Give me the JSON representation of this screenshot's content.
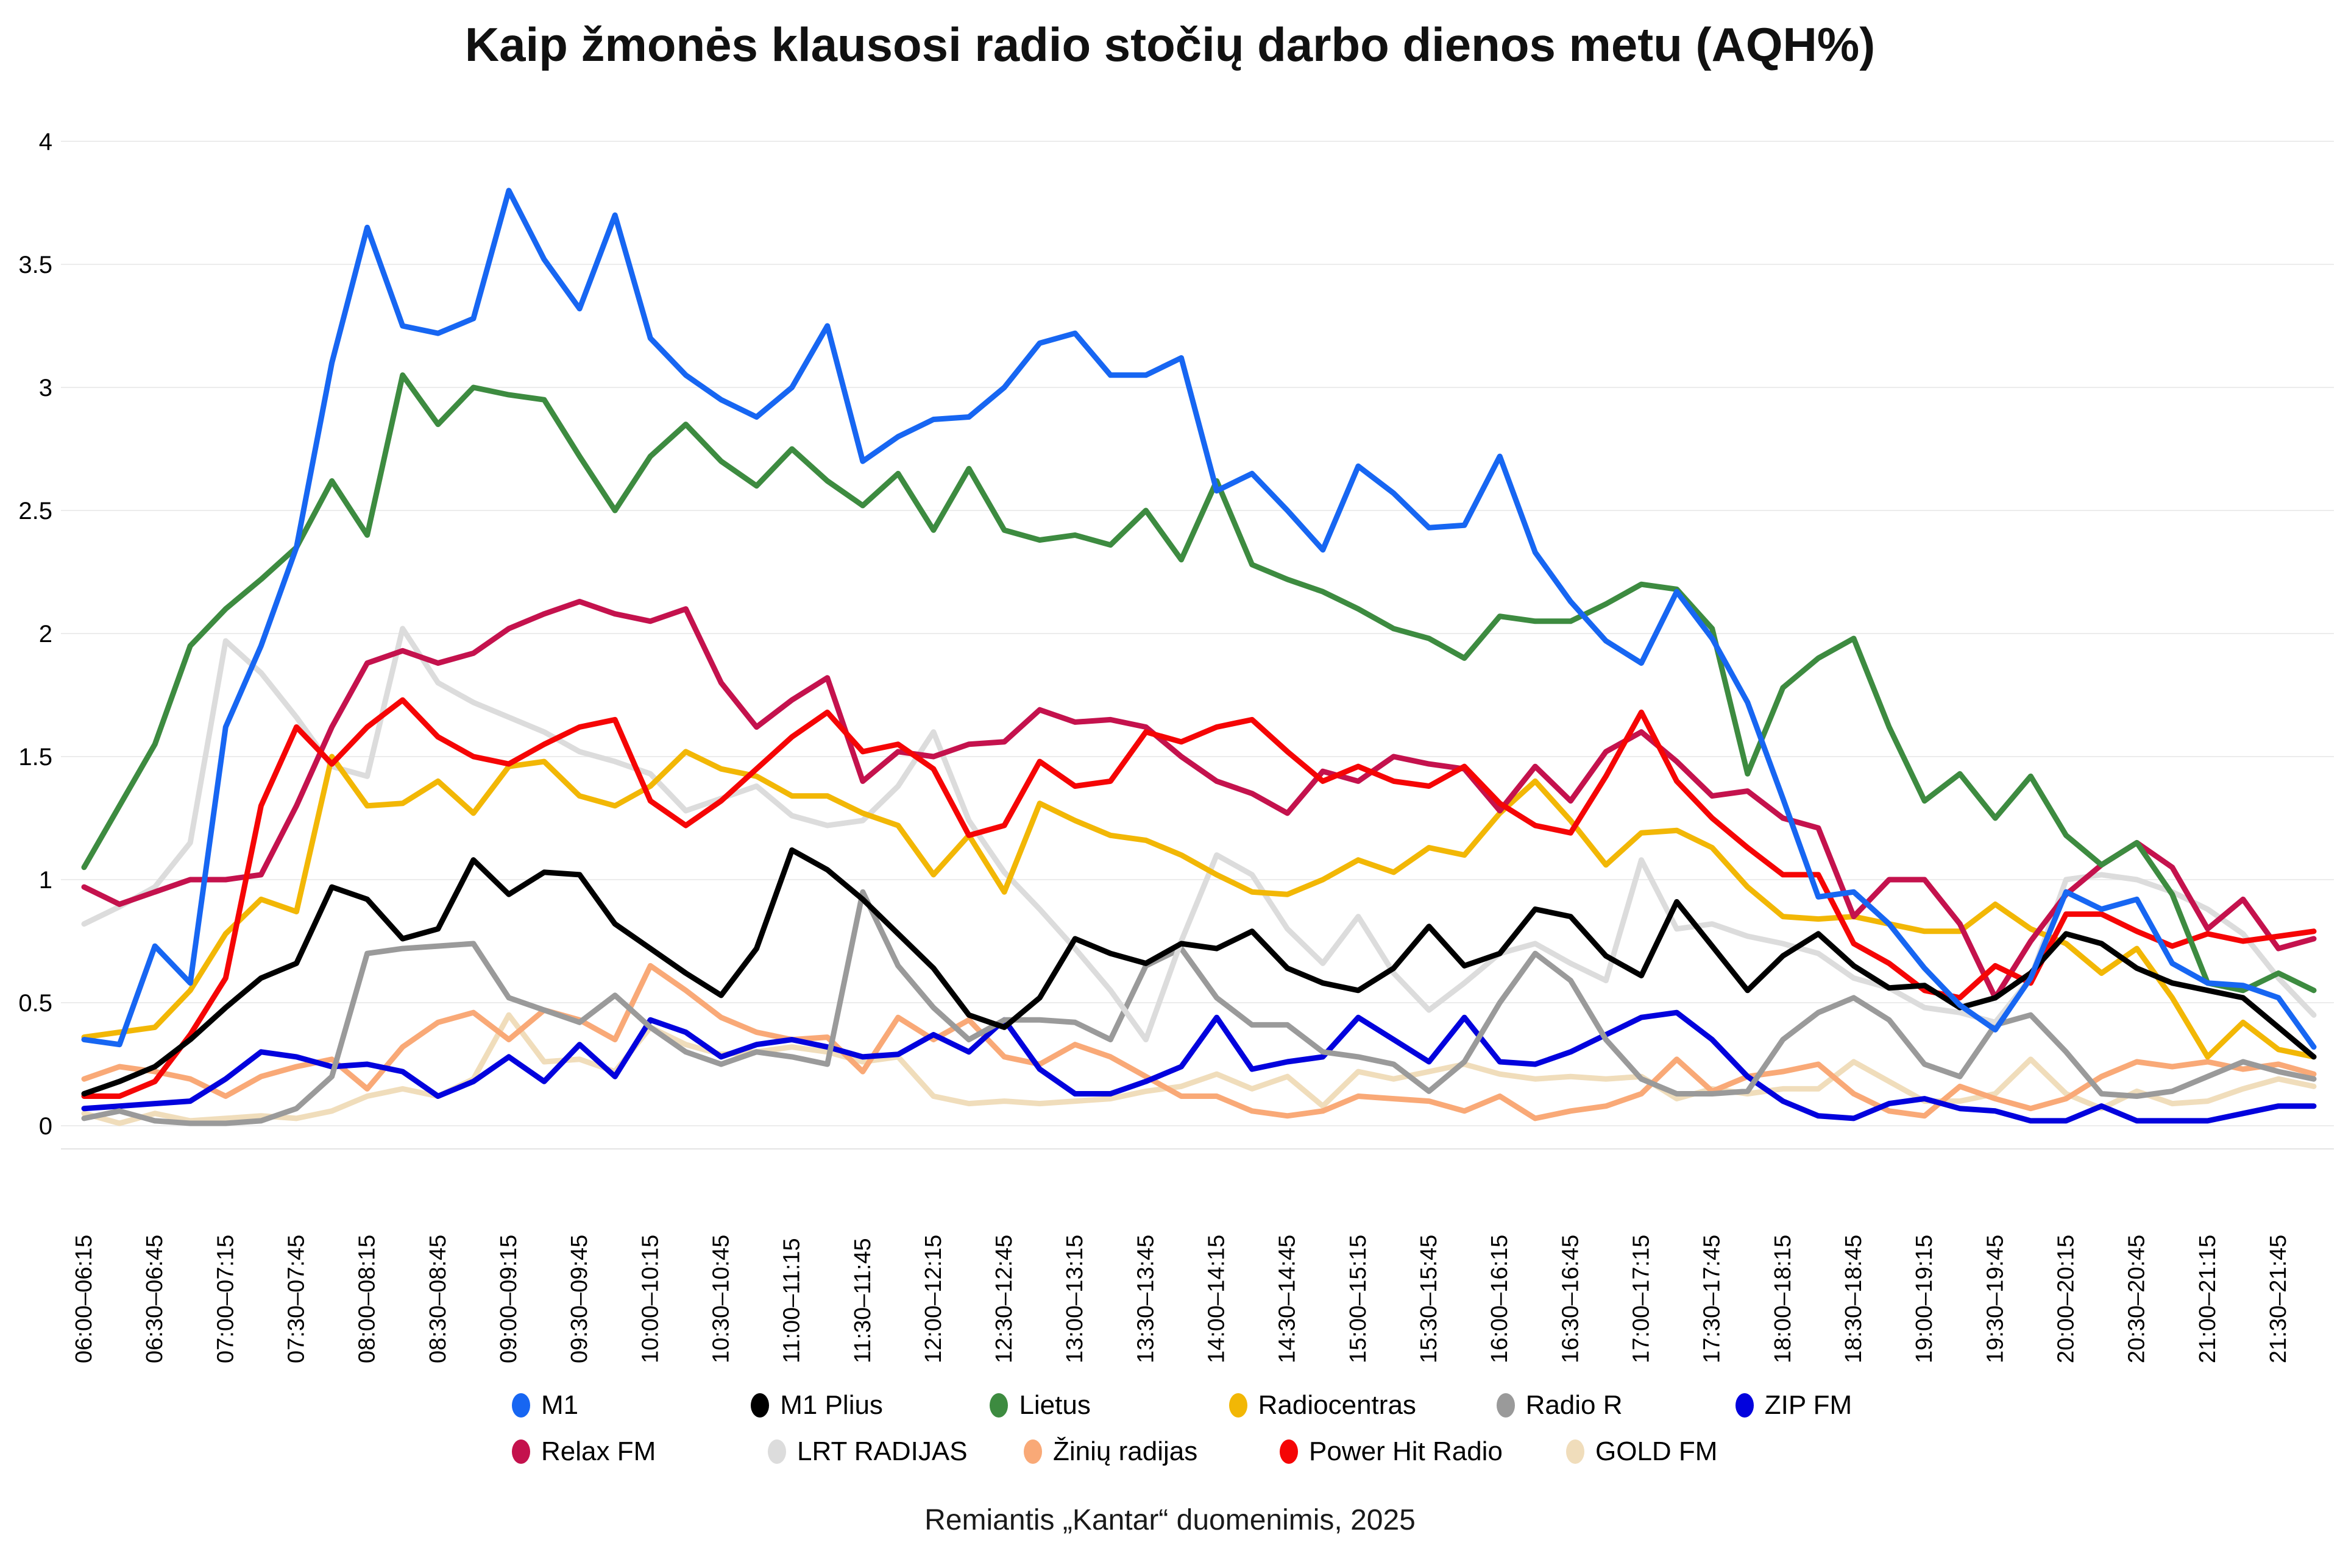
{
  "title": "Kaip žmonės klausosi radio stočių darbo dienos metu (AQH%)",
  "footer": "Remiantis „Kantar“ duomenimis, 2025",
  "chart_data": {
    "type": "line",
    "ylabel": "",
    "xlabel": "",
    "ylim": [
      0,
      4
    ],
    "yticks": [
      0,
      0.5,
      1,
      1.5,
      2,
      2.5,
      3,
      3.5,
      4
    ],
    "grid": "horizontal",
    "legend_position": "bottom",
    "x_tick_labels": [
      "06:00–06:15",
      "06:30–06:45",
      "07:00–07:15",
      "07:30–07:45",
      "08:00–08:15",
      "08:30–08:45",
      "09:00–09:15",
      "09:30–09:45",
      "10:00–10:15",
      "10:30–10:45",
      "11:00–11:15",
      "11:30–11:45",
      "12:00–12:15",
      "12:30–12:45",
      "13:00–13:15",
      "13:30–13:45",
      "14:00–14:15",
      "14:30–14:45",
      "15:00–15:15",
      "15:30–15:45",
      "16:00–16:15",
      "16:30–16:45",
      "17:00–17:15",
      "17:30–17:45",
      "18:00–18:15",
      "18:30–18:45",
      "19:00–19:15",
      "19:30–19:45",
      "20:00–20:15",
      "20:30–20:45",
      "21:00–21:15",
      "21:30–21:45"
    ],
    "x_points_per_label": 2,
    "series": [
      {
        "name": "M1",
        "color": "#1766f2",
        "values": [
          0.35,
          0.33,
          0.73,
          0.58,
          1.62,
          1.95,
          2.35,
          3.1,
          3.65,
          3.25,
          3.22,
          3.28,
          3.8,
          3.52,
          3.32,
          3.7,
          3.2,
          3.05,
          2.95,
          2.88,
          3.0,
          3.25,
          2.7,
          2.8,
          2.87,
          2.88,
          3.0,
          3.18,
          3.22,
          3.05,
          3.05,
          3.12,
          2.58,
          2.65,
          2.5,
          2.34,
          2.68,
          2.57,
          2.43,
          2.44,
          2.72,
          2.33,
          2.13,
          1.97,
          1.88,
          2.17,
          1.98,
          1.72,
          1.33,
          0.93,
          0.95,
          0.82,
          0.64,
          0.49,
          0.39,
          0.6,
          0.95,
          0.88,
          0.92,
          0.66,
          0.58,
          0.57,
          0.52,
          0.32
        ]
      },
      {
        "name": "M1 Plius",
        "color": "#000000",
        "values": [
          0.13,
          0.18,
          0.24,
          0.35,
          0.48,
          0.6,
          0.66,
          0.97,
          0.92,
          0.76,
          0.8,
          1.08,
          0.94,
          1.03,
          1.02,
          0.82,
          0.72,
          0.62,
          0.53,
          0.72,
          1.12,
          1.04,
          0.92,
          0.78,
          0.64,
          0.45,
          0.4,
          0.52,
          0.76,
          0.7,
          0.66,
          0.74,
          0.72,
          0.79,
          0.64,
          0.58,
          0.55,
          0.64,
          0.81,
          0.65,
          0.7,
          0.88,
          0.85,
          0.69,
          0.61,
          0.91,
          0.73,
          0.55,
          0.69,
          0.78,
          0.65,
          0.56,
          0.57,
          0.48,
          0.52,
          0.62,
          0.78,
          0.74,
          0.64,
          0.58,
          0.55,
          0.52,
          0.4,
          0.28
        ]
      },
      {
        "name": "Lietus",
        "color": "#3d8b40",
        "values": [
          1.05,
          1.3,
          1.55,
          1.95,
          2.1,
          2.22,
          2.35,
          2.62,
          2.4,
          3.05,
          2.85,
          3.0,
          2.97,
          2.95,
          2.72,
          2.5,
          2.72,
          2.85,
          2.7,
          2.6,
          2.75,
          2.62,
          2.52,
          2.65,
          2.42,
          2.67,
          2.42,
          2.38,
          2.4,
          2.36,
          2.5,
          2.3,
          2.62,
          2.28,
          2.22,
          2.17,
          2.1,
          2.02,
          1.98,
          1.9,
          2.07,
          2.05,
          2.05,
          2.12,
          2.2,
          2.18,
          2.02,
          1.43,
          1.78,
          1.9,
          1.98,
          1.62,
          1.32,
          1.43,
          1.25,
          1.42,
          1.18,
          1.06,
          1.15,
          0.94,
          0.58,
          0.55,
          0.62,
          0.55
        ]
      },
      {
        "name": "Radiocentras",
        "color": "#f2b705",
        "values": [
          0.36,
          0.38,
          0.4,
          0.55,
          0.78,
          0.92,
          0.87,
          1.5,
          1.3,
          1.31,
          1.4,
          1.27,
          1.46,
          1.48,
          1.34,
          1.3,
          1.38,
          1.52,
          1.45,
          1.42,
          1.34,
          1.34,
          1.27,
          1.22,
          1.02,
          1.18,
          0.95,
          1.31,
          1.24,
          1.18,
          1.16,
          1.1,
          1.02,
          0.95,
          0.94,
          1.0,
          1.08,
          1.03,
          1.13,
          1.1,
          1.27,
          1.4,
          1.24,
          1.06,
          1.19,
          1.2,
          1.13,
          0.97,
          0.85,
          0.84,
          0.85,
          0.82,
          0.79,
          0.79,
          0.9,
          0.8,
          0.74,
          0.62,
          0.72,
          0.52,
          0.28,
          0.42,
          0.31,
          0.28
        ]
      },
      {
        "name": "Radio R",
        "color": "#9a9a9a",
        "values": [
          0.03,
          0.06,
          0.02,
          0.01,
          0.01,
          0.02,
          0.07,
          0.2,
          0.7,
          0.72,
          0.73,
          0.74,
          0.52,
          0.47,
          0.42,
          0.53,
          0.4,
          0.3,
          0.25,
          0.3,
          0.28,
          0.25,
          0.95,
          0.65,
          0.48,
          0.35,
          0.43,
          0.43,
          0.42,
          0.35,
          0.65,
          0.72,
          0.52,
          0.41,
          0.41,
          0.3,
          0.28,
          0.25,
          0.14,
          0.26,
          0.5,
          0.7,
          0.59,
          0.35,
          0.19,
          0.13,
          0.13,
          0.14,
          0.35,
          0.46,
          0.52,
          0.43,
          0.25,
          0.2,
          0.41,
          0.45,
          0.3,
          0.13,
          0.12,
          0.14,
          0.2,
          0.26,
          0.22,
          0.19
        ]
      },
      {
        "name": "ZIP FM",
        "color": "#0202dd",
        "values": [
          0.07,
          0.08,
          0.09,
          0.1,
          0.19,
          0.3,
          0.28,
          0.24,
          0.25,
          0.22,
          0.12,
          0.18,
          0.28,
          0.18,
          0.33,
          0.2,
          0.43,
          0.38,
          0.28,
          0.33,
          0.35,
          0.32,
          0.28,
          0.29,
          0.37,
          0.3,
          0.43,
          0.23,
          0.13,
          0.13,
          0.18,
          0.24,
          0.44,
          0.23,
          0.26,
          0.28,
          0.44,
          0.35,
          0.26,
          0.44,
          0.26,
          0.25,
          0.3,
          0.37,
          0.44,
          0.46,
          0.35,
          0.2,
          0.1,
          0.04,
          0.03,
          0.09,
          0.11,
          0.07,
          0.06,
          0.02,
          0.02,
          0.08,
          0.02,
          0.02,
          0.02,
          0.05,
          0.08,
          0.08
        ]
      },
      {
        "name": "Relax FM",
        "color": "#c4124d",
        "values": [
          0.97,
          0.9,
          0.95,
          1.0,
          1.0,
          1.02,
          1.3,
          1.62,
          1.88,
          1.93,
          1.88,
          1.92,
          2.02,
          2.08,
          2.13,
          2.08,
          2.05,
          2.1,
          1.8,
          1.62,
          1.73,
          1.82,
          1.4,
          1.52,
          1.5,
          1.55,
          1.56,
          1.69,
          1.64,
          1.65,
          1.62,
          1.5,
          1.4,
          1.35,
          1.27,
          1.44,
          1.4,
          1.5,
          1.47,
          1.45,
          1.28,
          1.46,
          1.32,
          1.52,
          1.6,
          1.48,
          1.34,
          1.36,
          1.25,
          1.21,
          0.85,
          1.0,
          1.0,
          0.82,
          0.52,
          0.75,
          0.94,
          1.06,
          1.15,
          1.05,
          0.8,
          0.92,
          0.72,
          0.76
        ]
      },
      {
        "name": "LRT RADIJAS",
        "color": "#dcdcdc",
        "values": [
          0.82,
          0.89,
          0.97,
          1.15,
          1.97,
          1.84,
          1.66,
          1.46,
          1.42,
          2.02,
          1.8,
          1.72,
          1.66,
          1.6,
          1.52,
          1.48,
          1.43,
          1.28,
          1.33,
          1.38,
          1.26,
          1.22,
          1.24,
          1.38,
          1.6,
          1.24,
          1.03,
          0.88,
          0.72,
          0.55,
          0.35,
          0.75,
          1.1,
          1.02,
          0.8,
          0.66,
          0.85,
          0.62,
          0.47,
          0.58,
          0.7,
          0.74,
          0.66,
          0.59,
          1.08,
          0.8,
          0.82,
          0.77,
          0.74,
          0.7,
          0.6,
          0.56,
          0.48,
          0.46,
          0.42,
          0.6,
          1.0,
          1.02,
          1.0,
          0.95,
          0.88,
          0.78,
          0.6,
          0.45
        ]
      },
      {
        "name": "Žinių radijas",
        "color": "#f9a977",
        "values": [
          0.19,
          0.24,
          0.22,
          0.19,
          0.12,
          0.2,
          0.24,
          0.27,
          0.15,
          0.32,
          0.42,
          0.46,
          0.35,
          0.47,
          0.43,
          0.35,
          0.65,
          0.55,
          0.44,
          0.38,
          0.35,
          0.36,
          0.22,
          0.44,
          0.35,
          0.43,
          0.28,
          0.25,
          0.33,
          0.28,
          0.2,
          0.12,
          0.12,
          0.06,
          0.04,
          0.06,
          0.12,
          0.11,
          0.1,
          0.06,
          0.12,
          0.03,
          0.06,
          0.08,
          0.13,
          0.27,
          0.14,
          0.2,
          0.22,
          0.25,
          0.13,
          0.06,
          0.04,
          0.16,
          0.11,
          0.07,
          0.11,
          0.2,
          0.26,
          0.24,
          0.26,
          0.23,
          0.25,
          0.21
        ]
      },
      {
        "name": "Power Hit Radio",
        "color": "#f50505",
        "values": [
          0.12,
          0.12,
          0.18,
          0.37,
          0.6,
          1.3,
          1.62,
          1.47,
          1.62,
          1.73,
          1.58,
          1.5,
          1.47,
          1.55,
          1.62,
          1.65,
          1.32,
          1.22,
          1.32,
          1.45,
          1.58,
          1.68,
          1.52,
          1.55,
          1.45,
          1.18,
          1.22,
          1.48,
          1.38,
          1.4,
          1.6,
          1.56,
          1.62,
          1.65,
          1.52,
          1.4,
          1.46,
          1.4,
          1.38,
          1.46,
          1.31,
          1.22,
          1.19,
          1.42,
          1.68,
          1.4,
          1.25,
          1.13,
          1.02,
          1.02,
          0.74,
          0.66,
          0.55,
          0.52,
          0.65,
          0.58,
          0.86,
          0.86,
          0.79,
          0.73,
          0.78,
          0.75,
          0.77,
          0.79
        ]
      },
      {
        "name": "GOLD FM",
        "color": "#f0ddbb",
        "values": [
          0.05,
          0.01,
          0.05,
          0.02,
          0.03,
          0.04,
          0.03,
          0.06,
          0.12,
          0.15,
          0.12,
          0.19,
          0.45,
          0.26,
          0.27,
          0.22,
          0.4,
          0.33,
          0.29,
          0.3,
          0.32,
          0.3,
          0.26,
          0.28,
          0.12,
          0.09,
          0.1,
          0.09,
          0.1,
          0.11,
          0.14,
          0.16,
          0.21,
          0.15,
          0.2,
          0.08,
          0.22,
          0.19,
          0.22,
          0.25,
          0.21,
          0.19,
          0.2,
          0.19,
          0.2,
          0.11,
          0.15,
          0.13,
          0.15,
          0.15,
          0.26,
          0.18,
          0.1,
          0.1,
          0.13,
          0.27,
          0.13,
          0.07,
          0.14,
          0.09,
          0.1,
          0.15,
          0.19,
          0.16
        ]
      }
    ],
    "draw_order": [
      "GOLD FM",
      "Žinių radijas",
      "ZIP FM",
      "Radio R",
      "LRT RADIJAS",
      "Radiocentras",
      "Relax FM",
      "Power Hit Radio",
      "Lietus",
      "M1 Plius",
      "M1"
    ],
    "legend_rows": [
      [
        "M1",
        "M1 Plius",
        "Lietus",
        "Radiocentras",
        "Radio R",
        "ZIP FM"
      ],
      [
        "Relax FM",
        "LRT RADIJAS",
        "Žinių radijas",
        "Power Hit Radio",
        "GOLD FM"
      ]
    ]
  }
}
